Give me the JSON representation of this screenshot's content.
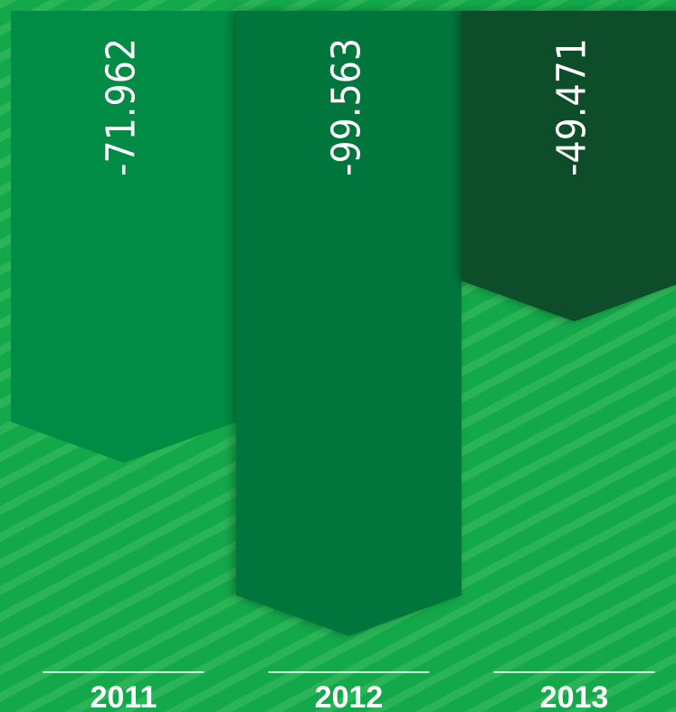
{
  "chart_data": {
    "type": "banner-bar",
    "categories": [
      "2011",
      "2012",
      "2013"
    ],
    "values": [
      -71.962,
      -99.563,
      -49.471
    ],
    "colors": [
      "#008c44",
      "#00763c",
      "#0b4d29"
    ],
    "ylim": [
      -100,
      0
    ]
  }
}
